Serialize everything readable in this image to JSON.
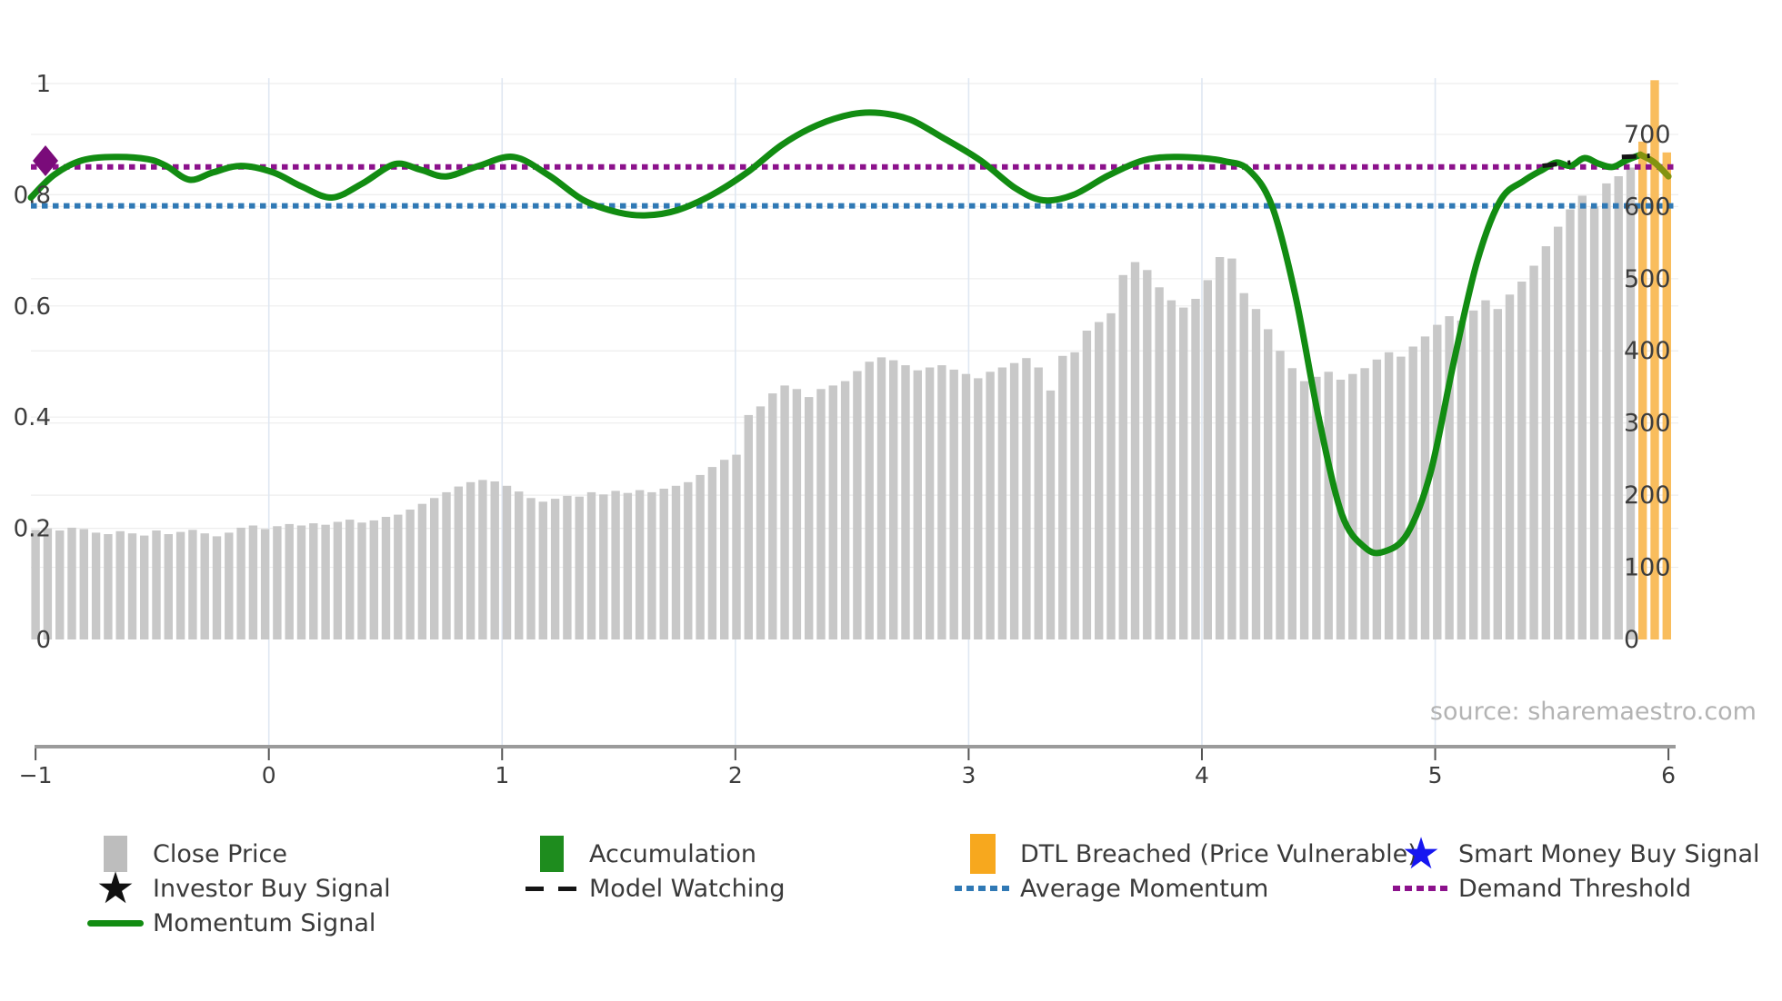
{
  "source_text": "source: sharemaestro.com",
  "colors": {
    "bar": "#c8c8c8",
    "bar_breached": "#f9bd5d",
    "legend_orange": "#f7a81e",
    "legend_gray": "#bdbdbd",
    "accumulation_green": "#1e8c1e",
    "momentum_line": "#128c12",
    "momentum_tail": "#839310",
    "demand_threshold": "#8c128c",
    "average_momentum": "#3079b5",
    "smart_money_blue": "#1616f0",
    "model_watching_black": "#151515",
    "investor_purple": "#7a0b7a",
    "axis_text": "#3d3d3d",
    "grid": "#ededed",
    "vgrid": "#dfe7f2",
    "axis_line": "#9b9b9b"
  },
  "axes": {
    "x_ticks": [
      "−1",
      "0",
      "1",
      "2",
      "3",
      "4",
      "5",
      "6"
    ],
    "x_tick_values": [
      -1,
      0,
      1,
      2,
      3,
      4,
      5,
      6
    ],
    "y_left_ticks": [
      "0",
      "0.2",
      "0.4",
      "0.6",
      "0.8",
      "1"
    ],
    "y_left_values": [
      0,
      0.2,
      0.4,
      0.6,
      0.8,
      1
    ],
    "y_right_ticks": [
      "0",
      "100",
      "200",
      "300",
      "400",
      "500",
      "600",
      "700"
    ],
    "y_right_values": [
      0,
      100,
      200,
      300,
      400,
      500,
      600,
      700
    ]
  },
  "chart_data": {
    "type": "combo (bar + line)",
    "xlim": [
      -1.05,
      6.05
    ],
    "ylim_left_momentum": [
      0,
      1.01
    ],
    "ylim_right_price": [
      0,
      780
    ],
    "grid": "on",
    "legend_position": "below, 4 columns",
    "close_price_bars": {
      "axis": "right",
      "x_start": -1.0,
      "x_step": 0.0518,
      "values": [
        152,
        154,
        151,
        155,
        153,
        148,
        146,
        150,
        147,
        144,
        151,
        146,
        149,
        152,
        147,
        143,
        148,
        155,
        158,
        153,
        157,
        160,
        158,
        161,
        159,
        163,
        166,
        162,
        165,
        170,
        173,
        180,
        188,
        196,
        204,
        212,
        218,
        221,
        219,
        213,
        205,
        196,
        191,
        195,
        199,
        198,
        204,
        201,
        206,
        203,
        207,
        204,
        209,
        213,
        218,
        228,
        239,
        249,
        256,
        311,
        323,
        341,
        352,
        347,
        336,
        347,
        352,
        358,
        372,
        385,
        391,
        387,
        380,
        373,
        377,
        380,
        374,
        368,
        362,
        371,
        377,
        383,
        390,
        377,
        345,
        393,
        398,
        428,
        440,
        452,
        505,
        523,
        512,
        488,
        470,
        460,
        472,
        498,
        530,
        528,
        480,
        458,
        430,
        400,
        376,
        358,
        364,
        371,
        360,
        368,
        376,
        388,
        398,
        392,
        406,
        420,
        436,
        448,
        442,
        456,
        470,
        458,
        478,
        496,
        518,
        545,
        572,
        596,
        615,
        600,
        632,
        642,
        654,
        690,
        775,
        675
      ],
      "dtl_breached_last_n": 3
    },
    "momentum_signal": {
      "axis": "left",
      "x": [
        -1.02,
        -0.92,
        -0.8,
        -0.66,
        -0.52,
        -0.44,
        -0.34,
        -0.24,
        -0.12,
        0.02,
        0.14,
        0.27,
        0.4,
        0.54,
        0.65,
        0.76,
        0.9,
        1.05,
        1.2,
        1.35,
        1.5,
        1.62,
        1.75,
        1.9,
        2.05,
        2.2,
        2.35,
        2.5,
        2.62,
        2.75,
        2.9,
        3.05,
        3.2,
        3.32,
        3.45,
        3.6,
        3.75,
        3.88,
        4.0,
        4.1,
        4.2,
        4.3,
        4.4,
        4.5,
        4.6,
        4.7,
        4.78,
        4.88,
        4.98,
        5.08,
        5.18,
        5.28,
        5.38,
        5.46,
        5.52,
        5.58,
        5.64,
        5.7,
        5.76,
        5.82,
        5.88
      ],
      "y": [
        0.795,
        0.836,
        0.862,
        0.868,
        0.864,
        0.852,
        0.827,
        0.84,
        0.852,
        0.84,
        0.815,
        0.795,
        0.82,
        0.855,
        0.845,
        0.833,
        0.852,
        0.868,
        0.835,
        0.79,
        0.768,
        0.763,
        0.772,
        0.8,
        0.84,
        0.89,
        0.925,
        0.945,
        0.947,
        0.935,
        0.9,
        0.862,
        0.812,
        0.79,
        0.8,
        0.835,
        0.862,
        0.868,
        0.866,
        0.86,
        0.845,
        0.78,
        0.62,
        0.4,
        0.225,
        0.165,
        0.158,
        0.19,
        0.3,
        0.5,
        0.68,
        0.79,
        0.825,
        0.845,
        0.858,
        0.852,
        0.866,
        0.856,
        0.85,
        0.862,
        0.872
      ]
    },
    "momentum_tail_model_watching": {
      "x": [
        5.88,
        5.94,
        6.0
      ],
      "y": [
        0.872,
        0.858,
        0.833
      ]
    },
    "model_watching_dashes": [
      {
        "x1": 5.46,
        "y1": 0.852,
        "x2": 5.58,
        "y2": 0.858
      },
      {
        "x1": 5.8,
        "y1": 0.868,
        "x2": 5.92,
        "y2": 0.87
      }
    ],
    "average_momentum": 0.78,
    "demand_threshold": 0.85,
    "investor_marker": {
      "x": -0.96,
      "y": 0.862,
      "shape": "diamond"
    }
  },
  "legend": {
    "items": [
      {
        "label": "Close Price",
        "marker": "gray-square"
      },
      {
        "label": "Investor Buy Signal",
        "marker": "black-star"
      },
      {
        "label": "Momentum Signal",
        "marker": "green-line"
      },
      {
        "label": "Accumulation",
        "marker": "green-square"
      },
      {
        "label": "Model Watching",
        "marker": "black-dashes"
      },
      {
        "label": "DTL Breached (Price Vulnerable)",
        "marker": "orange-square"
      },
      {
        "label": "Average Momentum",
        "marker": "blue-dotted"
      },
      {
        "label": "Smart Money Buy Signal",
        "marker": "blue-star"
      },
      {
        "label": "Demand Threshold",
        "marker": "purple-dotted"
      }
    ]
  }
}
